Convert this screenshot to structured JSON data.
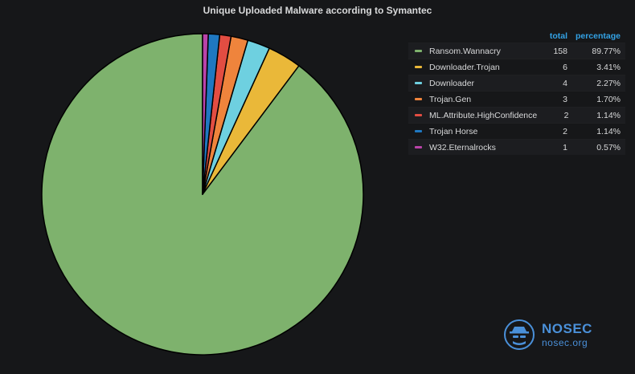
{
  "chart_data": {
    "type": "pie",
    "title": "Unique Uploaded Malware according to Symantec",
    "legend_headers": {
      "total": "total",
      "percentage": "percentage"
    },
    "slices": [
      {
        "label": "Ransom.Wannacry",
        "total": "158",
        "percentage": "89.77%",
        "value": 158,
        "color": "#7eb26d"
      },
      {
        "label": "Downloader.Trojan",
        "total": "6",
        "percentage": "3.41%",
        "value": 6,
        "color": "#eab839"
      },
      {
        "label": "Downloader",
        "total": "4",
        "percentage": "2.27%",
        "value": 4,
        "color": "#6ed0e0"
      },
      {
        "label": "Trojan.Gen",
        "total": "3",
        "percentage": "1.70%",
        "value": 3,
        "color": "#ef843c"
      },
      {
        "label": "ML.Attribute.HighConfidence",
        "total": "2",
        "percentage": "1.14%",
        "value": 2,
        "color": "#e24d42"
      },
      {
        "label": "Trojan Horse",
        "total": "2",
        "percentage": "1.14%",
        "value": 2,
        "color": "#1f78c1"
      },
      {
        "label": "W32.Eternalrocks",
        "total": "1",
        "percentage": "0.57%",
        "value": 1,
        "color": "#ba43a9"
      }
    ],
    "legend_placement": "right"
  },
  "logo": {
    "name": "NOSEC",
    "url": "nosec.org"
  },
  "colors": {
    "background": "#161719",
    "header_accent": "#33a2e5",
    "logo_blue": "#4a90d9"
  }
}
